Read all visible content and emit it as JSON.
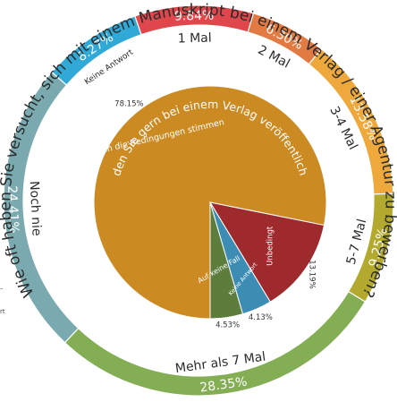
{
  "chart_data": [
    {
      "type": "pie",
      "title": "Wie oft haben Sie versucht, sich mit einem Manuskript bei einem Verlag / einer Agentur zu bewerben?",
      "categories": [
        "1 Mal",
        "2 Mal",
        "3-4 Mal",
        "5-7 Mal",
        "Mehr als 7 Mal",
        "Noch nie",
        "Keine Antwort"
      ],
      "values": [
        9.84,
        6.3,
        13.58,
        9.25,
        28.35,
        24.41,
        8.27
      ],
      "value_labels": [
        "9.84%",
        "6.30%",
        "13.58%",
        "9.25%",
        "28.35%",
        "24.41%",
        "8.27%"
      ],
      "colors": [
        "#e0474c",
        "#e27a43",
        "#eea83b",
        "#b3a92f",
        "#84ae54",
        "#7aaab0",
        "#31a9d6"
      ]
    },
    {
      "type": "pie",
      "title": "Würden Sie gern bei einem Verlag veröffentlichen?",
      "categories": [
        "Wenn die Bedingungen stimmen",
        "Unbedingt",
        "Keine Antwort",
        "Auf keine Fall"
      ],
      "values": [
        78.15,
        13.19,
        4.13,
        4.53
      ],
      "value_labels": [
        "78.15%",
        "13.19%",
        "4.13%",
        "4.53%"
      ],
      "colors": [
        "#cc8a23",
        "#9e2a2e",
        "#3c8cb3",
        "#5d7d3c"
      ]
    }
  ],
  "side_fragments": [
    "–",
    "rt"
  ]
}
